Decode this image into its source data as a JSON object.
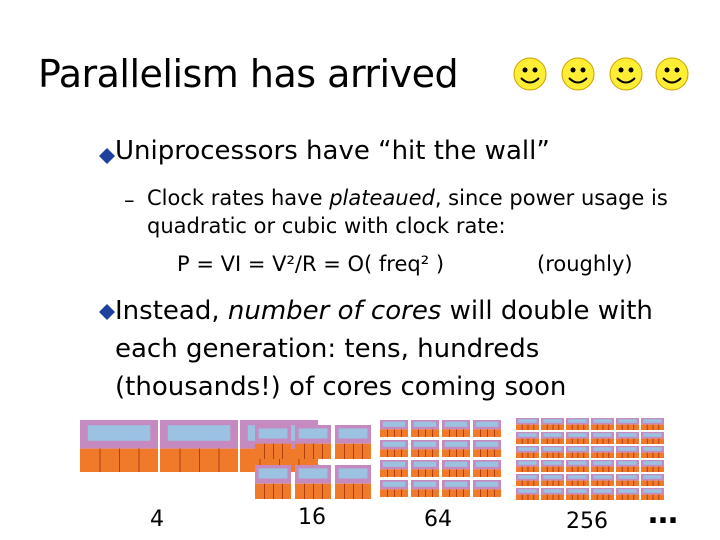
{
  "title": "Parallelism has arrived",
  "bullets": [
    {
      "text": "Uniprocessors have “hit the wall”",
      "sub": {
        "parts": [
          "Clock rates have ",
          "plateaued",
          ", since power usage is quadratic or cubic with clock rate:"
        ],
        "formula": "P = VI = V²/R = O( freq² )",
        "note": "(roughly)"
      }
    },
    {
      "parts": [
        "Instead, ",
        "number of cores",
        " will double with each generation: tens, hundreds (thousands!) of cores coming soon"
      ]
    }
  ],
  "core_labels": [
    "4",
    "16",
    "64",
    "256"
  ],
  "ellipsis": "…"
}
